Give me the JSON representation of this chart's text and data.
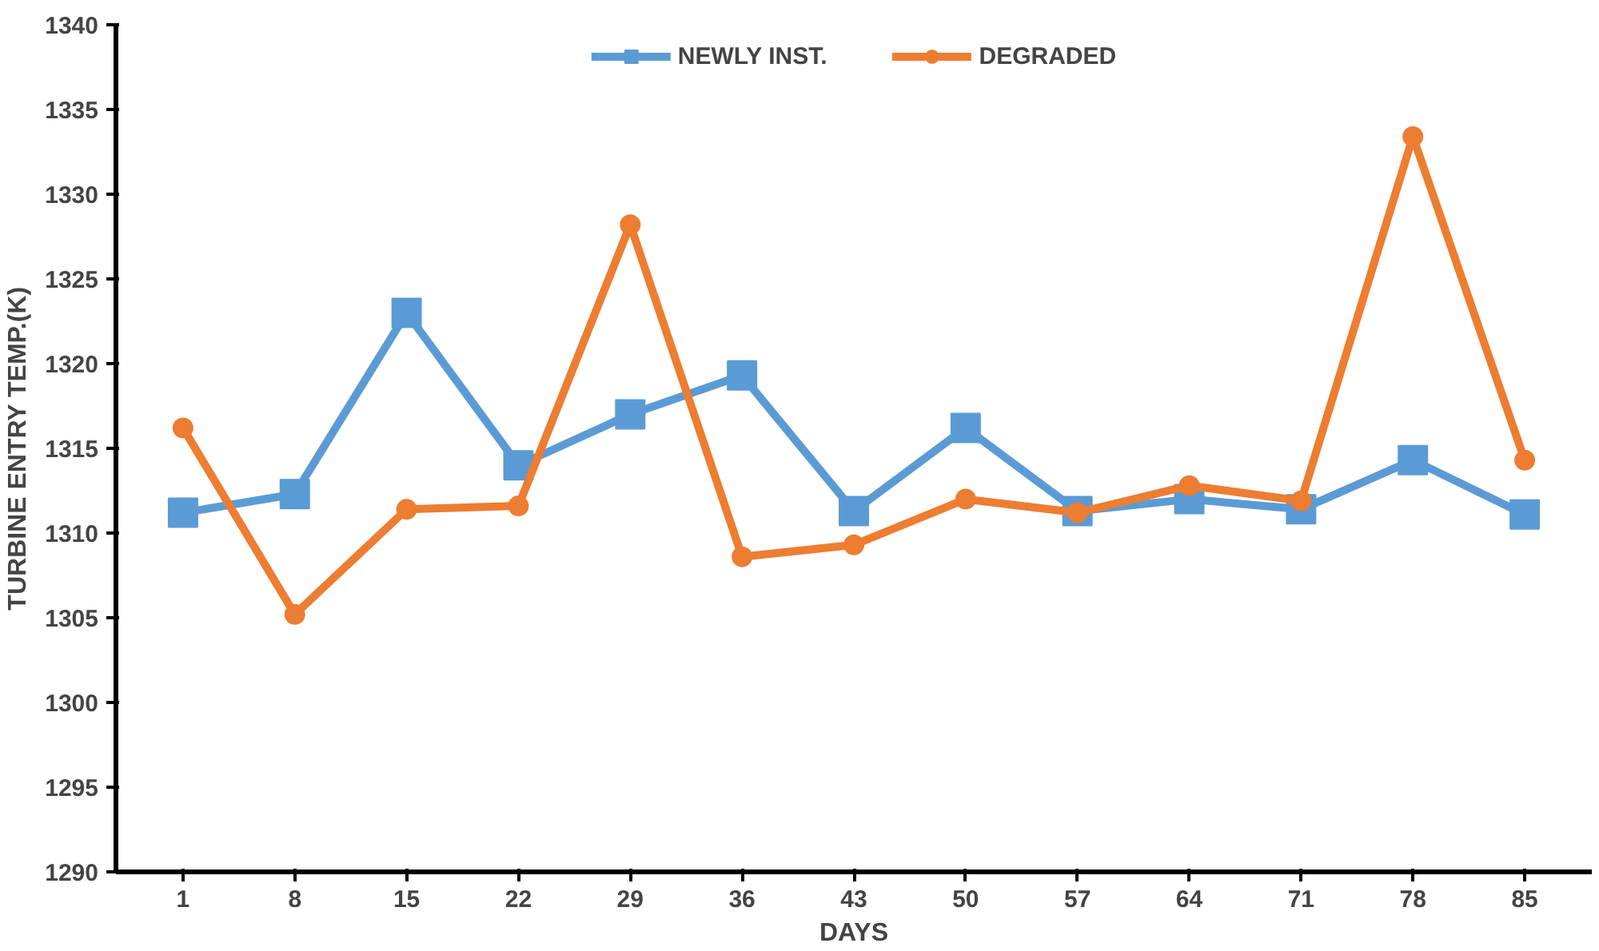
{
  "chart_data": {
    "type": "line",
    "xlabel": "DAYS",
    "ylabel": "TURBINE ENTRY TEMP.(K)",
    "categories": [
      "1",
      "8",
      "15",
      "22",
      "29",
      "36",
      "43",
      "50",
      "57",
      "64",
      "71",
      "78",
      "85"
    ],
    "ylim": [
      1290,
      1340
    ],
    "yticks": [
      1290,
      1295,
      1300,
      1305,
      1310,
      1315,
      1320,
      1325,
      1330,
      1335,
      1340
    ],
    "grid": false,
    "legend": "top",
    "line_style": "solid",
    "series": [
      {
        "name": "NEWLY INST.",
        "color": "#5b9bd5",
        "marker": "square",
        "values": [
          1311.2,
          1312.3,
          1323,
          1314,
          1317,
          1319.3,
          1311.3,
          1316.2,
          1311.3,
          1312,
          1311.4,
          1314.3,
          1311.1
        ]
      },
      {
        "name": "DEGRADED",
        "color": "#ed7d31",
        "marker": "circle",
        "values": [
          1316.2,
          1305.2,
          1311.4,
          1311.6,
          1328.2,
          1308.6,
          1309.3,
          1312,
          1311.2,
          1312.8,
          1311.9,
          1333.4,
          1314.3
        ]
      }
    ]
  }
}
